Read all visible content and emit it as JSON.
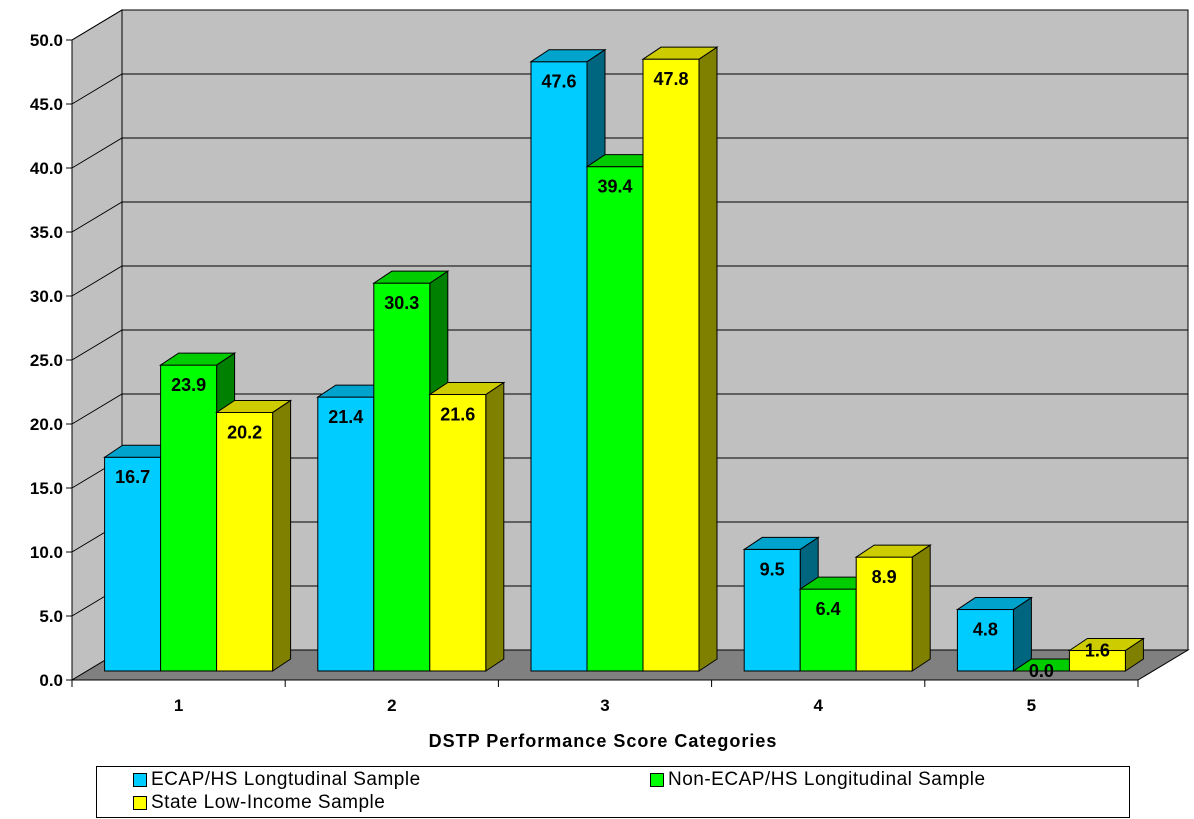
{
  "chart_data": {
    "type": "bar",
    "title": "",
    "xlabel": "DSTP Performance Score Categories",
    "ylabel": "",
    "categories": [
      "1",
      "2",
      "3",
      "4",
      "5"
    ],
    "series": [
      {
        "name": "ECAP/HS Longtudinal Sample",
        "values": [
          16.7,
          21.4,
          47.6,
          9.5,
          4.8
        ],
        "color": "#00CCFF"
      },
      {
        "name": "Non-ECAP/HS Longitudinal Sample",
        "values": [
          23.9,
          30.3,
          39.4,
          6.4,
          0.0
        ],
        "color": "#00FF00"
      },
      {
        "name": "State Low-Income Sample",
        "values": [
          20.2,
          21.6,
          47.8,
          8.9,
          1.6
        ],
        "color": "#FFFF00"
      }
    ],
    "ylim": [
      0,
      50
    ],
    "yticks": [
      "0.0",
      "5.0",
      "10.0",
      "15.0",
      "20.0",
      "25.0",
      "30.0",
      "35.0",
      "40.0",
      "45.0",
      "50.0"
    ],
    "data_labels": [
      [
        "16.7",
        "21.4",
        "47.6",
        "9.5",
        "4.8"
      ],
      [
        "23.9",
        "30.3",
        "39.4",
        "6.4",
        "0.0"
      ],
      [
        "20.2",
        "21.6",
        "47.8",
        "8.9",
        "1.6"
      ]
    ],
    "grid": true,
    "three_d": true,
    "legend_position": "bottom",
    "colors": {
      "wall": "#C0C0C0",
      "floor": "#808080",
      "grid": "#000000"
    }
  }
}
